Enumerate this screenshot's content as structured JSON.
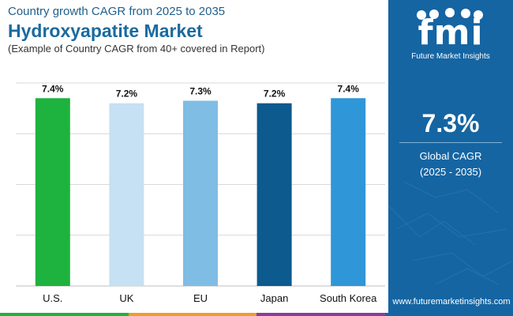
{
  "header": {
    "subtitle": "Country growth CAGR from 2025 to 2035",
    "title": "Hydroxyapatite Market",
    "note": "(Example of Country CAGR from 40+ covered in Report)"
  },
  "chart_data": {
    "type": "bar",
    "categories": [
      "U.S.",
      "UK",
      "EU",
      "Japan",
      "South Korea"
    ],
    "values": [
      7.4,
      7.2,
      7.3,
      7.2,
      7.4
    ],
    "value_labels": [
      "7.4%",
      "7.2%",
      "7.3%",
      "7.2%",
      "7.4%"
    ],
    "colors": [
      "#1db33e",
      "#c5e1f3",
      "#7fbde4",
      "#0c5a8e",
      "#2f96d8"
    ],
    "ylim": [
      0,
      8
    ],
    "grid": true,
    "gridline_color": "#cccccc",
    "title": "",
    "xlabel": "",
    "ylabel": ""
  },
  "sidebar": {
    "logo_mark": "fmi",
    "logo_text": "Future Market Insights",
    "cagr_value": "7.3%",
    "cagr_label": "Global CAGR",
    "cagr_period": "(2025 - 2035)",
    "website": "www.futuremarketinsights.com",
    "background": "#1565a3"
  },
  "bottom_bar_colors": [
    "#1db33e",
    "#f29b2a",
    "#8e3a9e",
    "#1565a3"
  ]
}
